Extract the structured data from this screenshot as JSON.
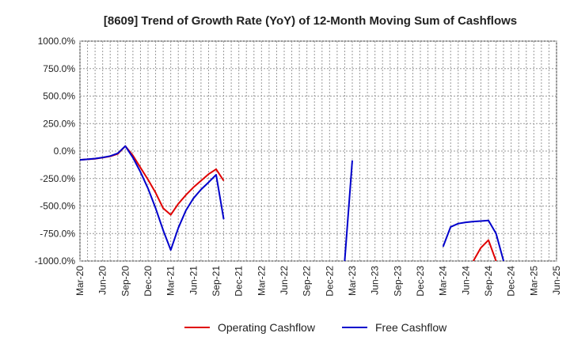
{
  "chart_data": {
    "type": "line",
    "title": "[8609]  Trend of Growth Rate (YoY) of 12-Month Moving Sum of Cashflows",
    "xlabel": "",
    "ylabel": "",
    "ylim": [
      -1000,
      1000
    ],
    "y_ticks": [
      "1000.0%",
      "750.0%",
      "500.0%",
      "250.0%",
      "0.0%",
      "-250.0%",
      "-500.0%",
      "-750.0%",
      "-1000.0%"
    ],
    "y_tick_values": [
      1000,
      750,
      500,
      250,
      0,
      -250,
      -500,
      -750,
      -1000
    ],
    "x_ticks": [
      "Mar-20",
      "Jun-20",
      "Sep-20",
      "Dec-20",
      "Mar-21",
      "Jun-21",
      "Sep-21",
      "Dec-21",
      "Mar-22",
      "Jun-22",
      "Sep-22",
      "Dec-22",
      "Mar-23",
      "Jun-23",
      "Sep-23",
      "Dec-23",
      "Mar-24",
      "Jun-24",
      "Sep-24",
      "Dec-24",
      "Mar-25",
      "Jun-25"
    ],
    "grid": true,
    "legend_position": "bottom",
    "series": [
      {
        "name": "Operating Cashflow",
        "color": "#e00000",
        "points": [
          [
            "Mar-20",
            -80
          ],
          [
            "Apr-20",
            -75
          ],
          [
            "May-20",
            -70
          ],
          [
            "Jun-20",
            -60
          ],
          [
            "Jul-20",
            -48
          ],
          [
            "Aug-20",
            -25
          ],
          [
            "Sep-20",
            45
          ],
          [
            "Oct-20",
            -40
          ],
          [
            "Nov-20",
            -150
          ],
          [
            "Dec-20",
            -260
          ],
          [
            "Jan-21",
            -380
          ],
          [
            "Feb-21",
            -520
          ],
          [
            "Mar-21",
            -580
          ],
          [
            "Apr-21",
            -480
          ],
          [
            "May-21",
            -400
          ],
          [
            "Jun-21",
            -330
          ],
          [
            "Jul-21",
            -270
          ],
          [
            "Aug-21",
            -210
          ],
          [
            "Sep-21",
            -165
          ],
          [
            "Oct-21",
            -270
          ],
          null,
          [
            "Jul-24",
            -1000
          ],
          [
            "Aug-24",
            -880
          ],
          [
            "Sep-24",
            -810
          ],
          [
            "Oct-24",
            -1000
          ]
        ]
      },
      {
        "name": "Free Cashflow",
        "color": "#0000cc",
        "points": [
          [
            "Mar-20",
            -80
          ],
          [
            "Apr-20",
            -75
          ],
          [
            "May-20",
            -68
          ],
          [
            "Jun-20",
            -58
          ],
          [
            "Jul-20",
            -45
          ],
          [
            "Aug-20",
            -20
          ],
          [
            "Sep-20",
            45
          ],
          [
            "Oct-20",
            -60
          ],
          [
            "Nov-20",
            -190
          ],
          [
            "Dec-20",
            -340
          ],
          [
            "Jan-21",
            -520
          ],
          [
            "Feb-21",
            -720
          ],
          [
            "Mar-21",
            -900
          ],
          [
            "Apr-21",
            -700
          ],
          [
            "May-21",
            -540
          ],
          [
            "Jun-21",
            -430
          ],
          [
            "Jul-21",
            -350
          ],
          [
            "Aug-21",
            -285
          ],
          [
            "Sep-21",
            -215
          ],
          [
            "Oct-21",
            -620
          ],
          null,
          [
            "Feb-23",
            -1000
          ],
          [
            "Mar-23",
            -85
          ],
          null,
          [
            "Mar-24",
            -870
          ],
          [
            "Apr-24",
            -690
          ],
          [
            "May-24",
            -660
          ],
          [
            "Jun-24",
            -648
          ],
          [
            "Jul-24",
            -641
          ],
          [
            "Aug-24",
            -637
          ],
          [
            "Sep-24",
            -632
          ],
          [
            "Oct-24",
            -750
          ],
          [
            "Nov-24",
            -1000
          ]
        ]
      }
    ]
  }
}
